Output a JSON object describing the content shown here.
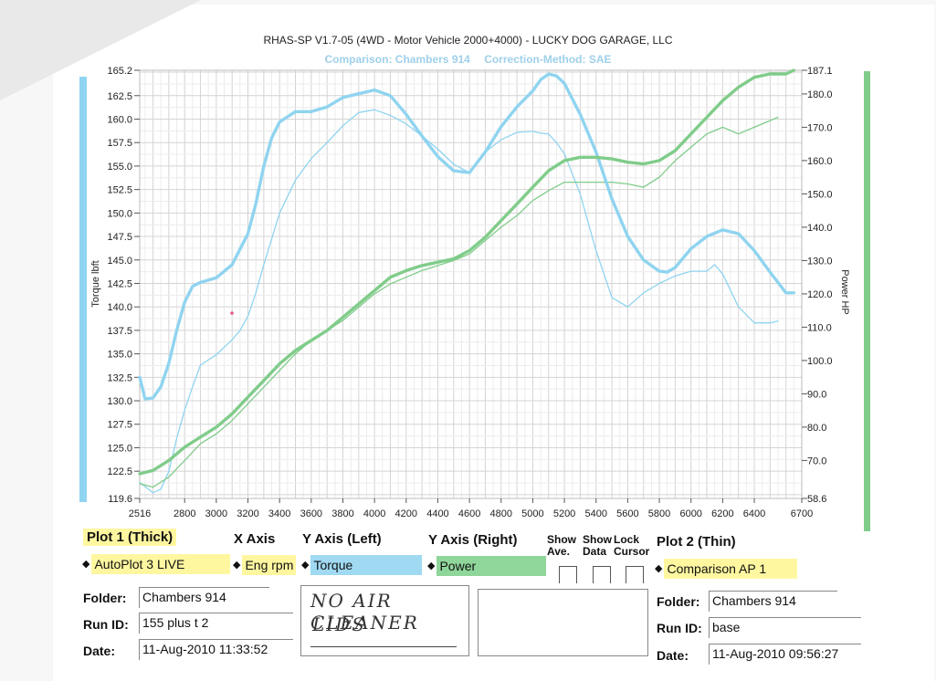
{
  "header": {
    "title": "RHAS-SP V1.7-05   (4WD - Motor Vehicle 2000+4000) - LUCKY DOG GARAGE, LLC",
    "comparison": "Comparison: Chambers 914",
    "correction": "Correction-Method: SAE"
  },
  "colors": {
    "torque": "#8fd4f0",
    "power": "#80cc8a",
    "grid": "#d8d8d8"
  },
  "chart_data": {
    "type": "line",
    "xlabel": "",
    "ylabel_left": "Torque lbft",
    "ylabel_right": "Power HP",
    "xlim": [
      2516,
      6700
    ],
    "ylim_left": [
      119.6,
      165.2
    ],
    "ylim_right": [
      58.6,
      187.1
    ],
    "grid": true,
    "x_ticks": [
      "2516",
      "2800",
      "3000",
      "3200",
      "3400",
      "3600",
      "3800",
      "4000",
      "4200",
      "4400",
      "4600",
      "4800",
      "5000",
      "5200",
      "5400",
      "5600",
      "5800",
      "6000",
      "6200",
      "6400",
      "6700"
    ],
    "y_left_ticks": [
      "165.2",
      "162.5",
      "160.0",
      "157.5",
      "155.0",
      "152.5",
      "150.0",
      "147.5",
      "145.0",
      "142.5",
      "140.0",
      "137.5",
      "135.0",
      "132.5",
      "130.0",
      "127.5",
      "125.0",
      "122.5",
      "119.6"
    ],
    "y_right_ticks": [
      "187.1",
      "180.0",
      "170.0",
      "160.0",
      "150.0",
      "140.0",
      "130.0",
      "120.0",
      "110.0",
      "100.0",
      "90.0",
      "80.0",
      "70.0",
      "58.6"
    ],
    "series": [
      {
        "name": "Torque",
        "axis": "left",
        "style": "thick",
        "x": [
          2516,
          2550,
          2600,
          2650,
          2700,
          2750,
          2800,
          2850,
          2900,
          3000,
          3100,
          3200,
          3250,
          3300,
          3350,
          3400,
          3500,
          3600,
          3700,
          3800,
          3900,
          4000,
          4100,
          4200,
          4300,
          4400,
          4500,
          4600,
          4700,
          4800,
          4900,
          5000,
          5050,
          5100,
          5150,
          5200,
          5300,
          5400,
          5500,
          5600,
          5700,
          5800,
          5850,
          5900,
          6000,
          6100,
          6200,
          6300,
          6400,
          6500,
          6600,
          6650
        ],
        "y": [
          132.5,
          130.2,
          130.3,
          131.5,
          134,
          137.5,
          140.5,
          142.2,
          142.6,
          143.1,
          144.5,
          147.8,
          151,
          155,
          158,
          159.7,
          160.8,
          160.8,
          161.3,
          162.3,
          162.7,
          163.1,
          162.5,
          160.5,
          158.2,
          156,
          154.5,
          154.3,
          156.5,
          159.2,
          161.3,
          163,
          164.2,
          164.8,
          164.6,
          163.8,
          160.5,
          156.5,
          151.5,
          147.5,
          145,
          143.8,
          143.7,
          144.2,
          146.2,
          147.5,
          148.2,
          147.8,
          146,
          143.7,
          141.5,
          141.5
        ]
      },
      {
        "name": "Power",
        "axis": "right",
        "style": "thick",
        "x": [
          2516,
          2600,
          2700,
          2800,
          2900,
          3000,
          3100,
          3200,
          3300,
          3400,
          3500,
          3600,
          3700,
          3800,
          3900,
          4000,
          4100,
          4200,
          4300,
          4400,
          4500,
          4600,
          4700,
          4800,
          4900,
          5000,
          5100,
          5200,
          5300,
          5400,
          5500,
          5600,
          5700,
          5800,
          5900,
          6000,
          6100,
          6200,
          6300,
          6400,
          6500,
          6600,
          6650
        ],
        "y": [
          66,
          67,
          70,
          74,
          77,
          80,
          84,
          89,
          94,
          99,
          103,
          106,
          109,
          113,
          117,
          121,
          125,
          127,
          128.5,
          129.5,
          130.5,
          133,
          137,
          142,
          147,
          152,
          157,
          160,
          161,
          161,
          160.5,
          159.5,
          159,
          160,
          163,
          168,
          173,
          178,
          182,
          185,
          186,
          186,
          187.1
        ]
      },
      {
        "name": "Comparison Torque",
        "axis": "left",
        "style": "thin",
        "x": [
          2516,
          2600,
          2650,
          2700,
          2750,
          2800,
          2850,
          2900,
          3000,
          3100,
          3150,
          3200,
          3250,
          3300,
          3400,
          3500,
          3600,
          3700,
          3800,
          3900,
          4000,
          4100,
          4200,
          4300,
          4400,
          4500,
          4600,
          4700,
          4800,
          4900,
          5000,
          5050,
          5100,
          5150,
          5200,
          5300,
          5400,
          5500,
          5600,
          5700,
          5800,
          5900,
          6000,
          6100,
          6150,
          6200,
          6300,
          6400,
          6500,
          6550
        ],
        "y": [
          121.3,
          120.2,
          120.6,
          122.5,
          126,
          129,
          131.5,
          133.8,
          134.9,
          136.5,
          137.5,
          139,
          141.5,
          144.5,
          150,
          153.5,
          155.8,
          157.5,
          159.3,
          160.7,
          161,
          160.4,
          159.5,
          158.2,
          156.8,
          155.2,
          154.3,
          156.5,
          157.8,
          158.6,
          158.7,
          158.5,
          158.4,
          157.5,
          156.3,
          152,
          146,
          141,
          140,
          141.5,
          142.5,
          143.3,
          143.8,
          143.8,
          144.5,
          143.5,
          140,
          138.3,
          138.3,
          138.5
        ]
      },
      {
        "name": "Comparison Power",
        "axis": "right",
        "style": "thin",
        "x": [
          2516,
          2600,
          2700,
          2800,
          2900,
          3000,
          3100,
          3200,
          3300,
          3400,
          3500,
          3600,
          3700,
          3800,
          3900,
          4000,
          4100,
          4200,
          4300,
          4400,
          4500,
          4600,
          4700,
          4800,
          4900,
          5000,
          5100,
          5200,
          5300,
          5400,
          5500,
          5600,
          5700,
          5800,
          5900,
          6000,
          6100,
          6200,
          6300,
          6400,
          6500,
          6550
        ],
        "y": [
          63,
          62,
          65,
          70,
          75,
          78,
          82,
          87,
          92,
          97,
          102,
          106,
          109,
          112,
          116,
          120,
          123,
          125,
          127,
          128.5,
          130,
          132,
          136,
          140,
          143.5,
          148,
          151,
          153.5,
          153.5,
          153.5,
          153.5,
          153,
          152,
          155,
          160,
          164,
          168,
          170,
          168,
          170,
          172,
          173
        ]
      }
    ]
  },
  "controls": {
    "plot1_label": "Plot 1 (Thick)",
    "xaxis_label": "X Axis",
    "yleft_label": "Y Axis (Left)",
    "yright_label": "Y Axis (Right)",
    "plot2_label": "Plot 2 (Thin)",
    "show_ave": [
      "Show",
      "Ave."
    ],
    "show_data": [
      "Show",
      "Data"
    ],
    "lock_cursor": [
      "Lock",
      "Cursor"
    ],
    "plot1_value": "AutoPlot 3 LIVE",
    "xaxis_value": "Eng rpm",
    "yleft_value": "Torque",
    "yright_value": "Power",
    "plot2_value": "Comparison AP 1",
    "arrows": "◆"
  },
  "run1": {
    "folder_label": "Folder:",
    "folder": "Chambers 914",
    "runid_label": "Run ID:",
    "runid": "155 plus t 2",
    "date_label": "Date:",
    "date": "11-Aug-2010  11:33:52"
  },
  "run2": {
    "folder_label": "Folder:",
    "folder": "Chambers 914",
    "runid_label": "Run ID:",
    "runid": "base",
    "date_label": "Date:",
    "date": "11-Aug-2010  09:56:27"
  },
  "notes": {
    "line1": "NO AIR CLEANER",
    "line2": "LIDS"
  }
}
